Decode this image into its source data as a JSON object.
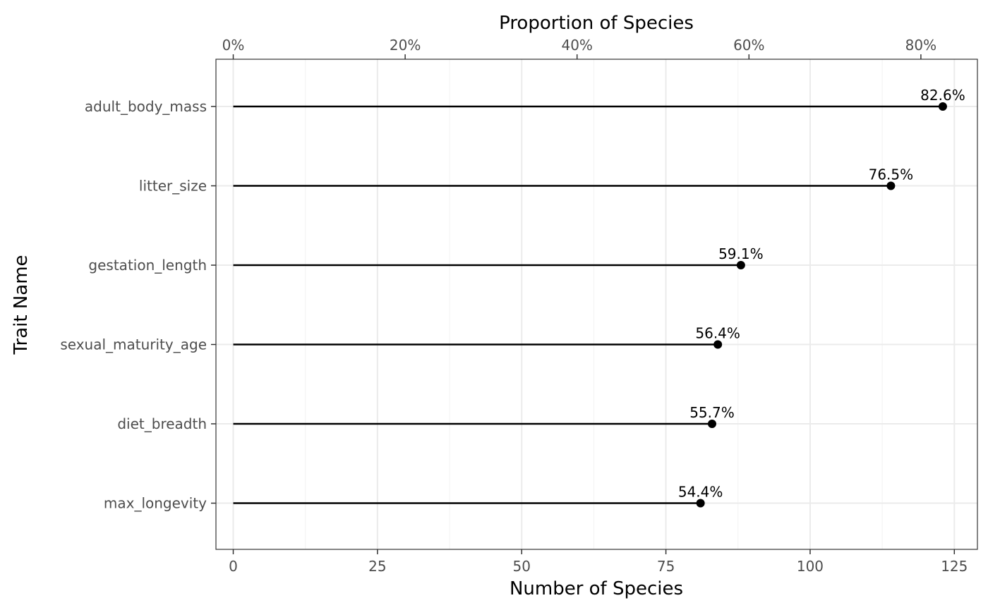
{
  "chart_data": {
    "type": "lollipop",
    "categories": [
      "adult_body_mass",
      "litter_size",
      "gestation_length",
      "sexual_maturity_age",
      "diet_breadth",
      "max_longevity"
    ],
    "values": [
      123,
      114,
      88,
      84,
      83,
      81
    ],
    "labels": [
      "82.6%",
      "76.5%",
      "59.1%",
      "56.4%",
      "55.7%",
      "54.4%"
    ],
    "xlabel": "Number of Species",
    "ylabel": "Trait Name",
    "top_axis_label": "Proportion of Species",
    "xlim": [
      -3,
      129
    ],
    "x_ticks": [
      "0",
      "25",
      "50",
      "75",
      "100",
      "125"
    ],
    "x_tick_values": [
      0,
      25,
      50,
      75,
      100,
      125
    ],
    "top_ticks": [
      "0%",
      "20%",
      "40%",
      "60%",
      "80%"
    ],
    "top_tick_values": [
      0,
      0.2,
      0.4,
      0.6,
      0.8
    ],
    "top_axis_total": 149,
    "grid": true,
    "colors": {
      "line": "#000000",
      "point": "#000000",
      "grid_major": "#ebebeb",
      "grid_minor": "#f4f4f4",
      "panel_border": "#333333",
      "tick_text": "#4d4d4d"
    }
  }
}
